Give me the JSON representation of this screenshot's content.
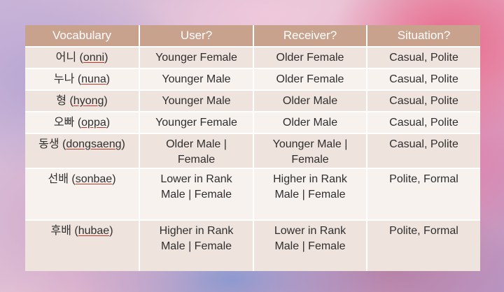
{
  "table": {
    "headers": [
      "Vocabulary",
      "User?",
      "Receiver?",
      "Situation?"
    ],
    "rows": [
      {
        "ko": "어니",
        "roman": "onni",
        "user": [
          "Younger Female"
        ],
        "receiver": [
          "Older Female"
        ],
        "situation": "Casual, Polite"
      },
      {
        "ko": "누나",
        "roman": "nuna",
        "user": [
          "Younger Male"
        ],
        "receiver": [
          "Older Female"
        ],
        "situation": "Casual, Polite"
      },
      {
        "ko": "형",
        "roman": "hyong",
        "user": [
          "Younger Male"
        ],
        "receiver": [
          "Older Male"
        ],
        "situation": "Casual, Polite"
      },
      {
        "ko": "오빠",
        "roman": "oppa",
        "user": [
          "Younger Female"
        ],
        "receiver": [
          "Older Male"
        ],
        "situation": "Casual, Polite"
      },
      {
        "ko": "동생",
        "roman": "dongsaeng",
        "user": [
          "Older Male |",
          "Female"
        ],
        "receiver": [
          "Younger Male |",
          "Female"
        ],
        "situation": "Casual, Polite"
      },
      {
        "ko": "선배",
        "roman": "sonbae",
        "user": [
          "Lower in Rank",
          "Male | Female"
        ],
        "receiver": [
          "Higher in Rank",
          "Male | Female"
        ],
        "situation": "Polite, Formal"
      },
      {
        "ko": "후배",
        "roman": "hubae",
        "user": [
          "Higher in Rank",
          "Male | Female"
        ],
        "receiver": [
          "Lower in Rank",
          "Male | Female"
        ],
        "situation": "Polite, Formal"
      }
    ]
  }
}
